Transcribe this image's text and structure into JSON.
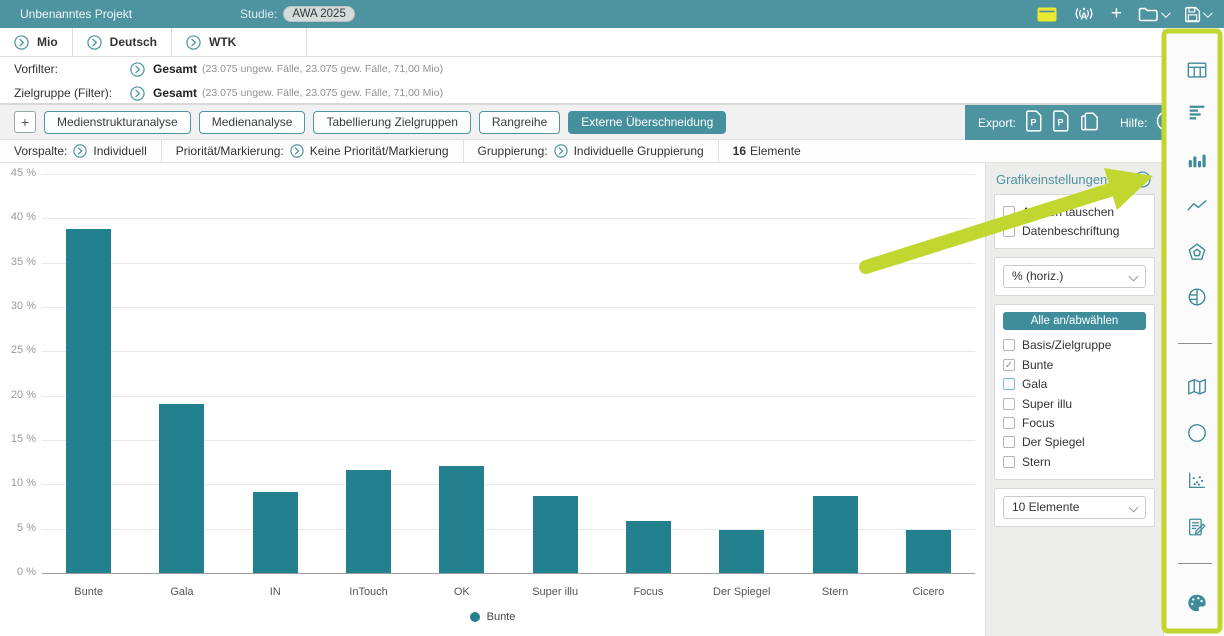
{
  "topbar": {
    "project_title": "Unbenanntes Projekt",
    "study_label": "Studie:",
    "study_value": "AWA 2025",
    "icons": [
      "window-icon",
      "antenna-icon",
      "add-icon",
      "open-folder-icon",
      "save-icon"
    ]
  },
  "filters": {
    "tabs": [
      {
        "label": "Mio"
      },
      {
        "label": "Deutsch"
      },
      {
        "label": "WTK"
      }
    ],
    "rows": [
      {
        "label": "Vorfilter:",
        "value": "Gesamt",
        "detail": "(23.075 ungew. Fälle, 23.075 gew. Fälle, 71,00 Mio)"
      },
      {
        "label": "Zielgruppe (Filter):",
        "value": "Gesamt",
        "detail": "(23.075 ungew. Fälle, 23.075 gew. Fälle, 71,00 Mio)"
      }
    ]
  },
  "analysis_tabs": {
    "add_label": "+",
    "tabs": [
      {
        "label": "Medienstrukturanalyse",
        "active": false
      },
      {
        "label": "Medienanalyse",
        "active": false
      },
      {
        "label": "Tabellierung Zielgruppen",
        "active": false
      },
      {
        "label": "Rangreihe",
        "active": false
      },
      {
        "label": "Externe Überschneidung",
        "active": true
      }
    ],
    "export_label": "Export:",
    "export_icons": [
      "pdf-document-icon",
      "ppt-document-icon",
      "copy-pages-icon"
    ],
    "help_label": "Hilfe:",
    "help_icon": "question-mark-icon"
  },
  "settings_row": {
    "items": [
      {
        "label": "Vorspalte:",
        "value": "Individuell"
      },
      {
        "label": "Priorität/Markierung:",
        "value": "Keine Priorität/Markierung"
      },
      {
        "label": "Gruppierung:",
        "value": "Individuelle Gruppierung"
      }
    ],
    "count_value": "16",
    "count_label": "Elemente"
  },
  "chart_data": {
    "type": "bar",
    "categories": [
      "Bunte",
      "Gala",
      "IN",
      "InTouch",
      "OK",
      "Super illu",
      "Focus",
      "Der Spiegel",
      "Stern",
      "Cicero"
    ],
    "values": [
      38.8,
      19.1,
      9.1,
      11.6,
      12.1,
      8.7,
      5.9,
      4.8,
      8.7,
      4.8
    ],
    "title": "",
    "xlabel": "",
    "ylabel": "",
    "ylim": [
      0,
      45
    ],
    "ytick_step": 5,
    "ytick_suffix": " %",
    "grid": true,
    "bar_color": "#23808f",
    "legend_position": "bottom",
    "legend": [
      {
        "label": "Bunte",
        "color": "#23808f"
      }
    ]
  },
  "settings_panel": {
    "title": "Grafikeinstellungen",
    "collapse_icon": "chevron-right-circle-icon",
    "options": [
      {
        "label": "Achsen tauschen",
        "checked": false
      },
      {
        "label": "Datenbeschriftung",
        "checked": false
      }
    ],
    "unit_dropdown": "% (horiz.)",
    "select_all_button": "Alle an/abwählen",
    "series_checkboxes": [
      {
        "label": "Basis/Zielgruppe",
        "checked": false
      },
      {
        "label": "Bunte",
        "checked": true
      },
      {
        "label": "Gala",
        "checked": false,
        "focused": true
      },
      {
        "label": "Super illu",
        "checked": false
      },
      {
        "label": "Focus",
        "checked": false
      },
      {
        "label": "Der Spiegel",
        "checked": false
      },
      {
        "label": "Stern",
        "checked": false
      }
    ],
    "elements_dropdown": "10 Elemente"
  },
  "sidebar": {
    "icons_top": [
      "table-icon",
      "hbar-chart-icon",
      "bar-chart-icon",
      "line-chart-icon",
      "radar-icon",
      "pie-chart-icon"
    ],
    "icons_middle": [
      "map-icon",
      "circle-icon",
      "scatter-plot-icon",
      "report-icon"
    ],
    "icons_bottom": [
      "palette-icon"
    ]
  },
  "annotation": {
    "highlight_color": "#c1d730",
    "target": "chevron-right-circle-icon"
  },
  "colors": {
    "topbar_teal": "#4e93a0",
    "bar_teal": "#23808f",
    "active_tab_teal": "#44909d",
    "highlight_lime": "#c1d730"
  }
}
